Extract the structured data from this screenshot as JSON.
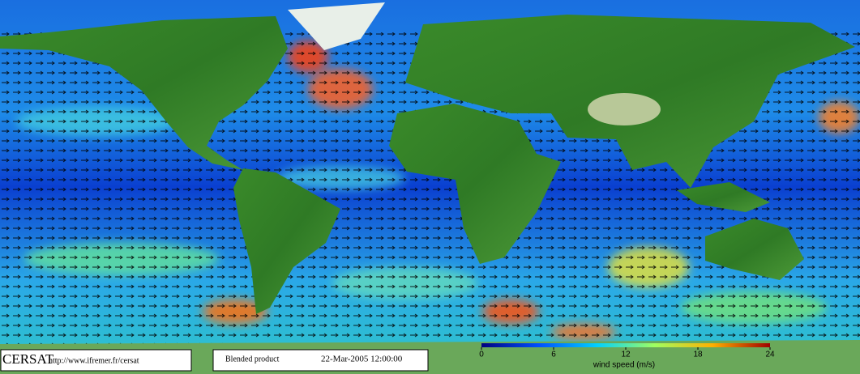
{
  "footer": {
    "logo": "CERSAT",
    "url": "http://www.ifremer.fr/cersat",
    "product": "Blended product",
    "date": "22-Mar-2005 12:00:00"
  },
  "colorbar": {
    "label": "wind speed (m/s)",
    "lim": [
      0,
      24
    ],
    "ticks": [
      0,
      6,
      12,
      18,
      24
    ]
  }
}
